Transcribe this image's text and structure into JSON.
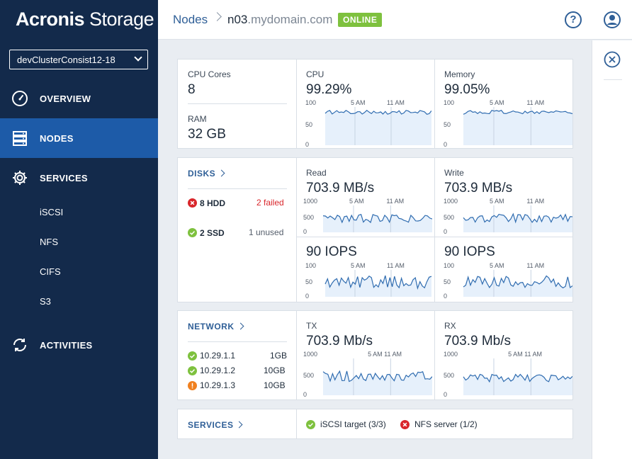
{
  "brand": {
    "name_bold": "Acronis",
    "name_light": " Storage"
  },
  "cluster_select": {
    "value": "devClusterConsist12-18"
  },
  "nav": {
    "overview": "OVERVIEW",
    "nodes": "NODES",
    "services": "SERVICES",
    "sub_items": [
      "iSCSI",
      "NFS",
      "CIFS",
      "S3"
    ],
    "activities": "ACTIVITIES"
  },
  "header": {
    "crumb_nodes": "Nodes",
    "node_name_main": "n03",
    "node_name_domain": ".mydomain.com",
    "status": "ONLINE",
    "help_label": "?"
  },
  "colors": {
    "sidebar": "#132a4b",
    "active": "#1d5ba8",
    "accent": "#2f5f97",
    "online": "#7ec13e",
    "ok": "#7ec13e",
    "error": "#d9262b",
    "warn": "#f0801f",
    "chart_fill": "#e6f0fb",
    "chart_line": "#2f6cb0"
  },
  "summary": {
    "cpu_cores_label": "CPU Cores",
    "cpu_cores_value": "8",
    "ram_label": "RAM",
    "ram_value": "32 GB",
    "cpu_label": "CPU",
    "cpu_value": "99.29%",
    "memory_label": "Memory",
    "memory_value": "99.05%"
  },
  "disks": {
    "title": "DISKS",
    "hdd_label": "8 HDD",
    "hdd_status": "2 failed",
    "ssd_label": "2 SSD",
    "ssd_status": "1 unused",
    "read_label": "Read",
    "read_value": "703.9 MB/s",
    "write_label": "Write",
    "write_value": "703.9 MB/s",
    "iops_read_value": "90 IOPS",
    "iops_write_value": "90 IOPS"
  },
  "network": {
    "title": "NETWORK",
    "interfaces": [
      {
        "ip": "10.29.1.1",
        "speed": "1GB",
        "status": "ok"
      },
      {
        "ip": "10.29.1.2",
        "speed": "10GB",
        "status": "ok"
      },
      {
        "ip": "10.29.1.3",
        "speed": "10GB",
        "status": "warning"
      }
    ],
    "tx_label": "TX",
    "tx_value": "703.9 Mb/s",
    "rx_label": "RX",
    "rx_value": "703.9 Mb/s"
  },
  "services": {
    "title": "SERVICES",
    "items": [
      {
        "label": "iSCSI target (3/3)",
        "status": "ok"
      },
      {
        "label": "NFS server (1/2)",
        "status": "error"
      }
    ]
  },
  "charts": {
    "pct": {
      "y_ticks": [
        "100",
        "50",
        "0"
      ],
      "x_ticks": [
        "5 AM",
        "11 AM"
      ]
    },
    "mbps": {
      "y_ticks": [
        "1000",
        "500",
        "0"
      ],
      "x_ticks": [
        "5 AM",
        "11 AM"
      ]
    },
    "iops": {
      "y_ticks": [
        "100",
        "50",
        "0"
      ],
      "x_ticks": [
        "5 AM",
        "11 AM"
      ]
    },
    "net": {
      "y_ticks": [
        "1000",
        "500",
        "0"
      ],
      "x_ticks": [
        "5 AM 11 AM"
      ]
    }
  }
}
